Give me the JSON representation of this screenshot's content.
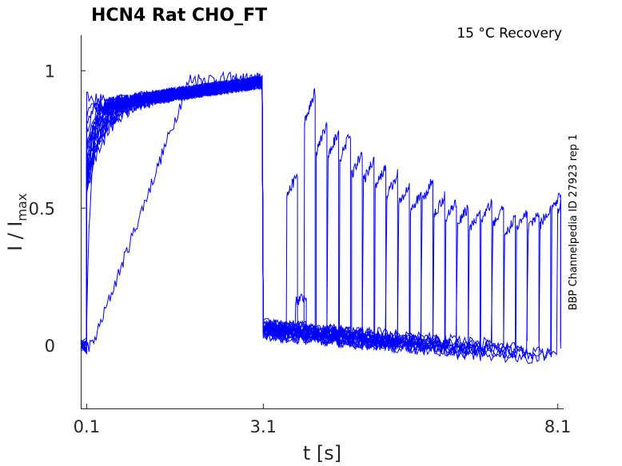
{
  "chart_data": {
    "type": "line",
    "title": "HCN4  Rat  CHO_FT",
    "condition": "15 °C  Recovery",
    "side_label": "BBP Channelpedia ID 27923 rep 1",
    "xlabel": "t [s]",
    "ylabel_main": "I / I",
    "ylabel_sub": "max",
    "xlim": [
      0,
      8.2
    ],
    "ylim": [
      -0.23,
      1.13
    ],
    "x_ticks": [
      0.1,
      3.1,
      8.1
    ],
    "x_tick_labels": [
      "0.1",
      "3.1",
      "8.1"
    ],
    "y_ticks": [
      0,
      0.5,
      1
    ],
    "y_tick_labels": [
      "0",
      "0.5",
      "1"
    ],
    "grid": false,
    "line_color": "#0000ff",
    "series": [
      {
        "recovery_end_s": 3.5,
        "recovery_level": 0.62,
        "start_level": 0.78
      },
      {
        "recovery_end_s": 3.65,
        "recovery_level": 0.18,
        "start_level": 0.75
      },
      {
        "recovery_end_s": 3.8,
        "recovery_level": 0.92,
        "start_level": 0.72
      },
      {
        "recovery_end_s": 4.0,
        "recovery_level": 0.8,
        "start_level": 0.7
      },
      {
        "recovery_end_s": 4.2,
        "recovery_level": 0.78,
        "start_level": 0.68
      },
      {
        "recovery_end_s": 4.4,
        "recovery_level": 0.77,
        "start_level": 0.66
      },
      {
        "recovery_end_s": 4.6,
        "recovery_level": 0.7,
        "start_level": 0.64
      },
      {
        "recovery_end_s": 4.8,
        "recovery_level": 0.68,
        "start_level": 0.62
      },
      {
        "recovery_end_s": 5.0,
        "recovery_level": 0.65,
        "start_level": 0.6
      },
      {
        "recovery_end_s": 5.2,
        "recovery_level": 0.62,
        "start_level": 0.58
      },
      {
        "recovery_end_s": 5.4,
        "recovery_level": 0.58,
        "start_level": 0.57
      },
      {
        "recovery_end_s": 5.6,
        "recovery_level": 0.55,
        "start_level": 0.56
      },
      {
        "recovery_end_s": 5.8,
        "recovery_level": 0.6,
        "start_level": 0.55
      },
      {
        "recovery_end_s": 6.0,
        "recovery_level": 0.54,
        "start_level": 0.55
      },
      {
        "recovery_end_s": 6.2,
        "recovery_level": 0.52,
        "start_level": 0.56
      },
      {
        "recovery_end_s": 6.4,
        "recovery_level": 0.5,
        "start_level": 0.6
      },
      {
        "recovery_end_s": 6.6,
        "recovery_level": 0.48,
        "start_level": 0.58
      },
      {
        "recovery_end_s": 6.8,
        "recovery_level": 0.52,
        "start_level": 0.62
      },
      {
        "recovery_end_s": 7.0,
        "recovery_level": 0.5,
        "start_level": 0.8
      },
      {
        "recovery_end_s": 7.2,
        "recovery_level": 0.46,
        "start_level": 0.65
      },
      {
        "recovery_end_s": 7.4,
        "recovery_level": 0.48,
        "start_level": 0.7
      },
      {
        "recovery_end_s": 7.6,
        "recovery_level": 0.48,
        "start_level": 0.75
      },
      {
        "recovery_end_s": 7.8,
        "recovery_level": 0.5,
        "start_level": 0.85
      },
      {
        "recovery_end_s": 8.0,
        "recovery_level": 0.56,
        "start_level": 0.9
      },
      {
        "recovery_end_s": 8.1,
        "recovery_level": 0.56,
        "start_level": 0.1
      }
    ]
  }
}
